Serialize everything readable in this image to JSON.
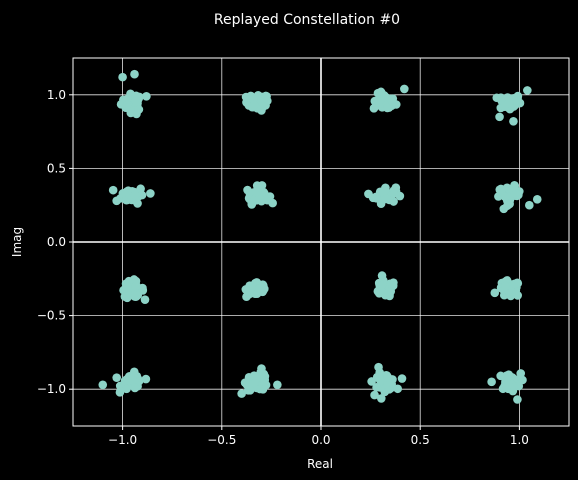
{
  "chart_data": {
    "type": "scatter",
    "title": "Replayed Constellation #0",
    "xlabel": "Real",
    "ylabel": "Imag",
    "xlim": [
      -1.25,
      1.25
    ],
    "ylim": [
      -1.25,
      1.25
    ],
    "xticks": [
      -1.0,
      -0.5,
      0.0,
      0.5,
      1.0
    ],
    "xtick_labels": [
      "−1.0",
      "−0.5",
      "0.0",
      "0.5",
      "1.0"
    ],
    "yticks": [
      1.0,
      0.5,
      0.0,
      -0.5,
      -1.0
    ],
    "ytick_labels": [
      "1.0",
      "0.5",
      "0.0",
      "−0.5",
      "−1.0"
    ],
    "grid": true,
    "axhline": 0.0,
    "axvline": 0.0,
    "marker_color": "#8dd3c7",
    "grid_color": "#ffffff",
    "background_color": "#000000",
    "constellation_centers": [
      [
        -0.95,
        0.95
      ],
      [
        -0.32,
        0.95
      ],
      [
        0.32,
        0.95
      ],
      [
        0.95,
        0.95
      ],
      [
        -0.95,
        0.32
      ],
      [
        -0.32,
        0.32
      ],
      [
        0.32,
        0.32
      ],
      [
        0.95,
        0.32
      ],
      [
        -0.95,
        -0.32
      ],
      [
        -0.32,
        -0.32
      ],
      [
        0.32,
        -0.32
      ],
      [
        0.95,
        -0.32
      ],
      [
        -0.95,
        -0.95
      ],
      [
        -0.32,
        -0.95
      ],
      [
        0.32,
        -0.95
      ],
      [
        0.95,
        -0.95
      ]
    ],
    "noise_std": 0.028,
    "points_per_symbol": 36,
    "outliers": [
      [
        -1.0,
        1.12
      ],
      [
        -0.94,
        1.14
      ],
      [
        -0.88,
        0.99
      ],
      [
        -0.93,
        0.87
      ],
      [
        0.42,
        1.04
      ],
      [
        0.9,
        0.85
      ],
      [
        0.97,
        0.82
      ],
      [
        1.04,
        1.03
      ],
      [
        -1.03,
        0.28
      ],
      [
        -0.86,
        0.33
      ],
      [
        1.05,
        0.25
      ],
      [
        1.09,
        0.29
      ],
      [
        -1.1,
        -0.97
      ],
      [
        -0.4,
        -1.03
      ],
      [
        -0.22,
        -0.97
      ],
      [
        -0.3,
        -0.86
      ],
      [
        0.29,
        -0.85
      ],
      [
        0.27,
        -1.04
      ],
      [
        0.86,
        -0.95
      ],
      [
        0.99,
        -1.07
      ]
    ]
  }
}
